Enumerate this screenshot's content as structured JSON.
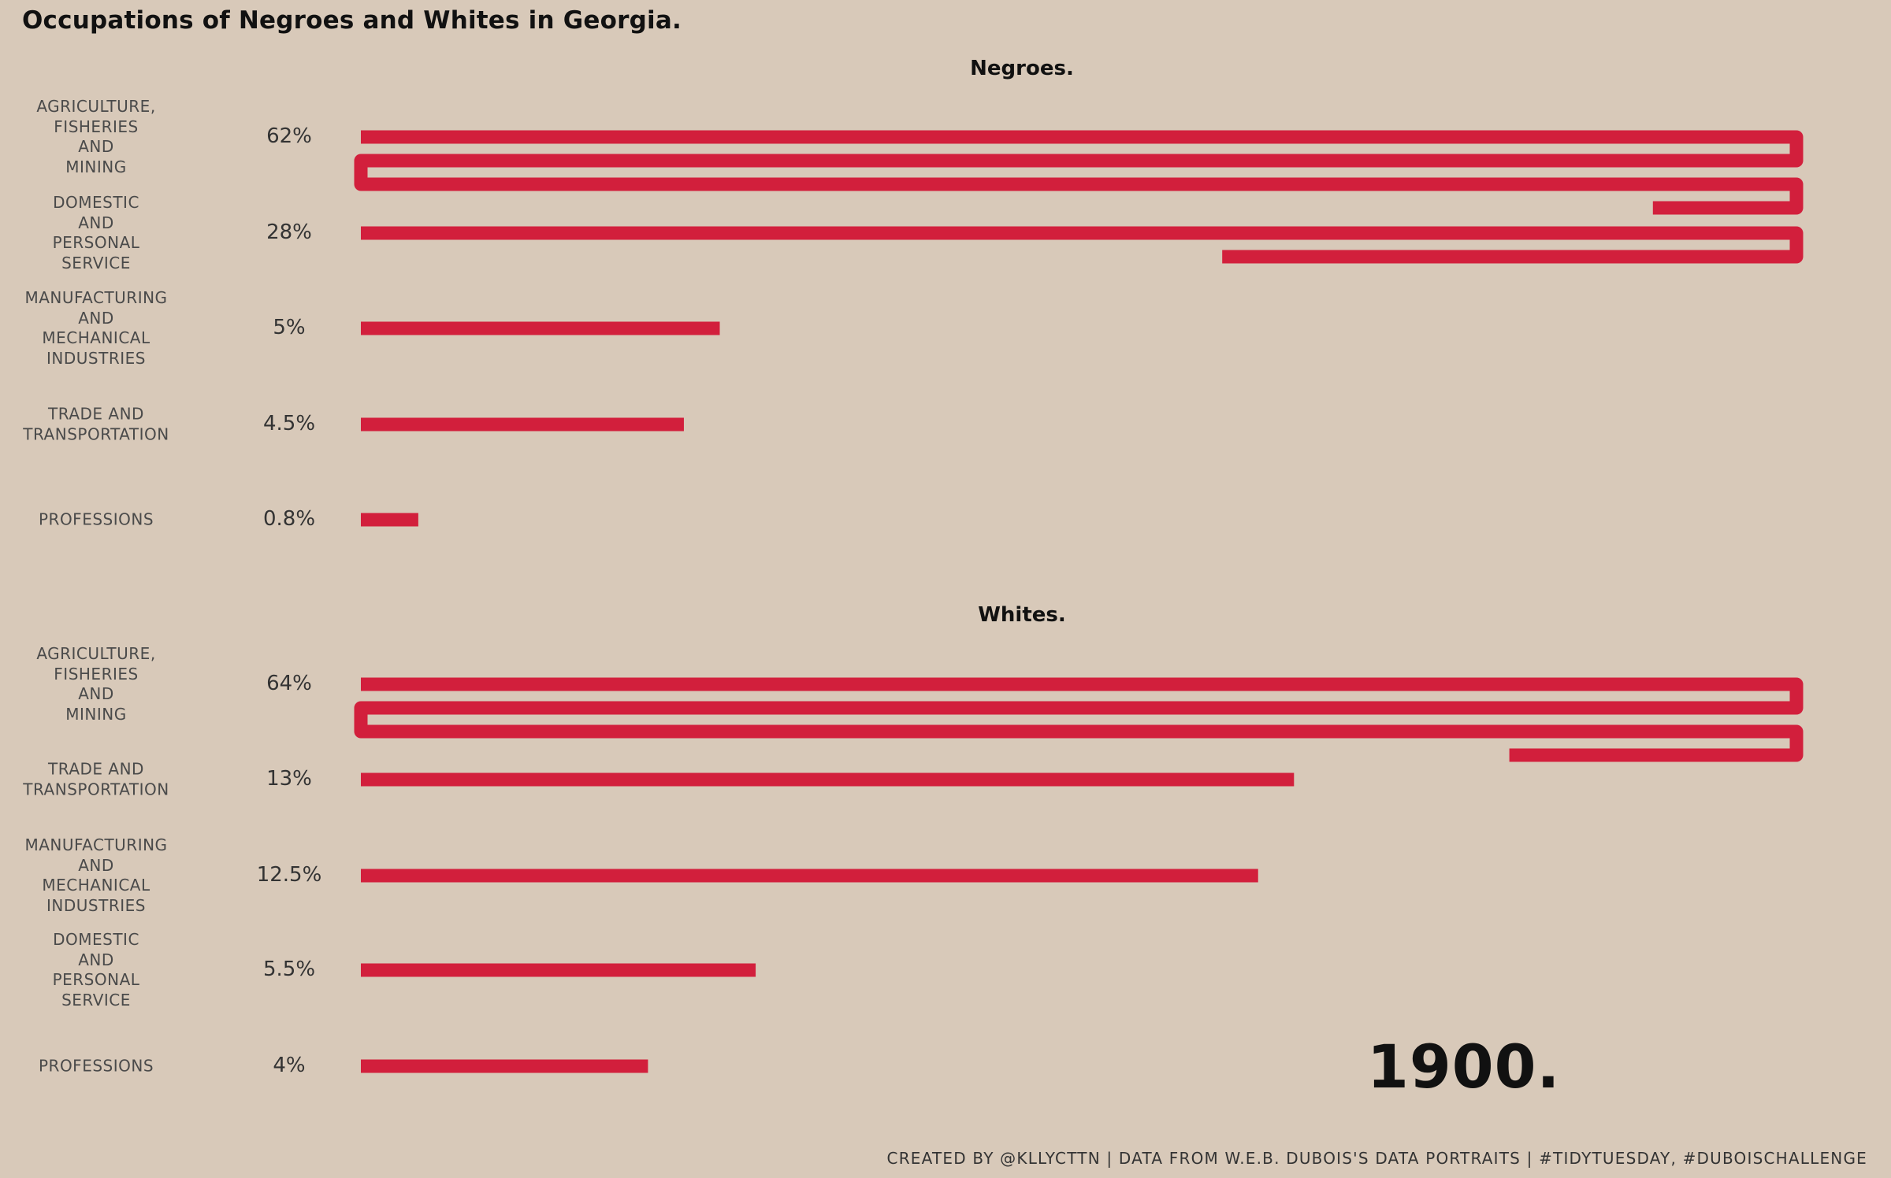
{
  "title": "Occupations of Negroes and Whites in Georgia.",
  "year_label": "1900.",
  "footer": "CREATED BY @KLLYCTTN | DATA FROM W.E.B. DUBOIS'S DATA PORTRAITS | #TIDYTUESDAY, #DUBOISCHALLENGE",
  "colors": {
    "background": "#d8c9b9",
    "bar": "#d21f3c",
    "text": "#111111"
  },
  "chart_data": [
    {
      "type": "bar",
      "title": "Negroes.",
      "orientation": "horizontal",
      "categories": [
        "AGRICULTURE,\nFISHERIES\nAND\nMINING",
        "DOMESTIC\nAND\nPERSONAL\nSERVICE",
        "MANUFACTURING\nAND\nMECHANICAL\nINDUSTRIES",
        "TRADE AND\nTRANSPORTATION",
        "PROFESSIONS"
      ],
      "values": [
        62,
        28,
        5,
        4.5,
        0.8
      ],
      "value_labels": [
        "62%",
        "28%",
        "5%",
        "4.5%",
        "0.8%"
      ],
      "bar_wrap_value": 20
    },
    {
      "type": "bar",
      "title": "Whites.",
      "orientation": "horizontal",
      "categories": [
        "AGRICULTURE,\nFISHERIES\nAND\nMINING",
        "TRADE AND\nTRANSPORTATION",
        "MANUFACTURING\nAND\nMECHANICAL\nINDUSTRIES",
        "DOMESTIC\nAND\nPERSONAL\nSERVICE",
        "PROFESSIONS"
      ],
      "values": [
        64,
        13,
        12.5,
        5.5,
        4
      ],
      "value_labels": [
        "64%",
        "13%",
        "12.5%",
        "5.5%",
        "4%"
      ],
      "bar_wrap_value": 20
    }
  ]
}
